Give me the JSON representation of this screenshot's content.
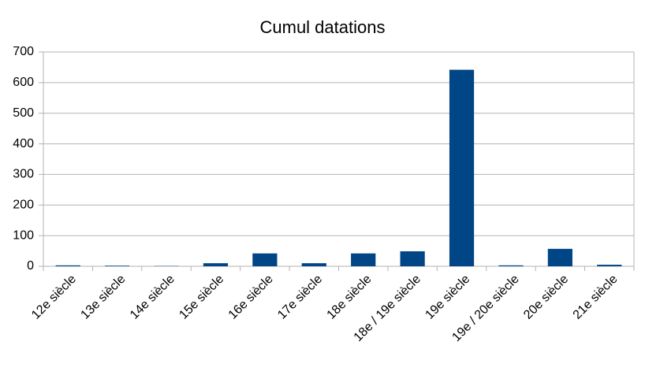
{
  "chart_data": {
    "type": "bar",
    "title": "Cumul datations",
    "categories": [
      "12e siècle",
      "13e siècle",
      "14e siècle",
      "15e siècle",
      "16e siècle",
      "17e siècle",
      "18e siècle",
      "18e / 19e siècle",
      "19e siècle",
      "19e / 20e siècle",
      "20e siècle",
      "21e siècle"
    ],
    "values": [
      3,
      2,
      1,
      10,
      42,
      10,
      42,
      49,
      642,
      3,
      57,
      5
    ],
    "color": "#004586",
    "ylim": [
      0,
      700
    ],
    "yticks": [
      0,
      100,
      200,
      300,
      400,
      500,
      600,
      700
    ],
    "grid": true
  }
}
